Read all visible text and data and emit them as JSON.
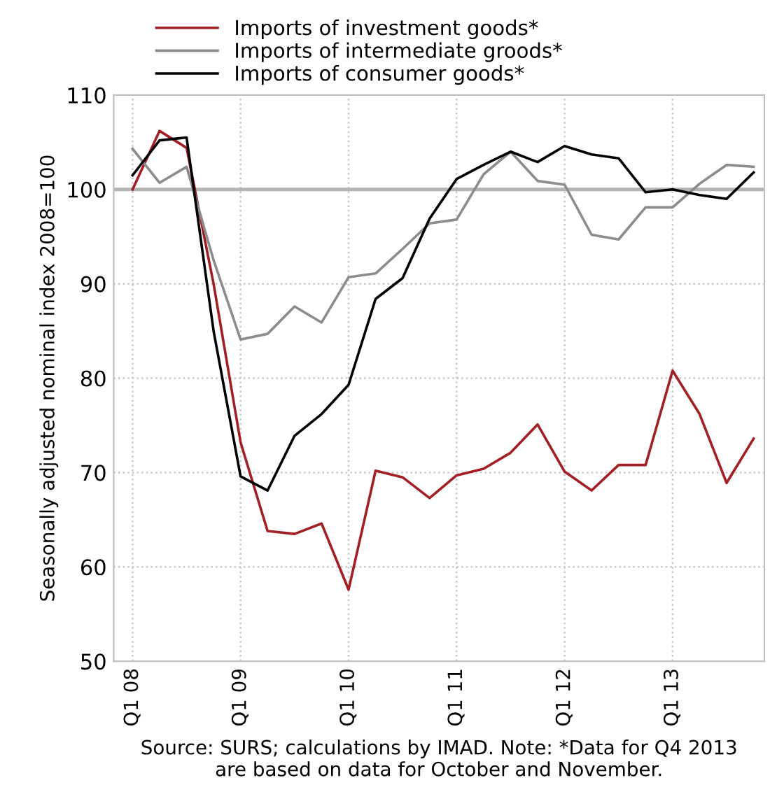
{
  "chart_data": {
    "type": "line",
    "ylabel": "Seasonally adjusted nominal index 2008=100",
    "categories": [
      "Q1 08",
      null,
      null,
      null,
      "Q1 09",
      null,
      null,
      null,
      "Q1 10",
      null,
      null,
      null,
      "Q1 11",
      null,
      null,
      null,
      "Q1 12",
      null,
      null,
      null,
      "Q1 13",
      null,
      null,
      null
    ],
    "series": [
      {
        "name": "Imports of investment goods*",
        "color": "#a31f24",
        "values": [
          100.0,
          106.2,
          104.4,
          90.0,
          73.2,
          63.8,
          63.5,
          64.6,
          57.6,
          70.2,
          69.5,
          67.3,
          69.7,
          70.4,
          72.1,
          75.1,
          70.1,
          68.1,
          70.8,
          70.8,
          80.8,
          76.2,
          68.9,
          73.6
        ]
      },
      {
        "name": "Imports of intermediate groods*",
        "color": "#8c8c8c",
        "values": [
          104.3,
          100.7,
          102.4,
          92.5,
          84.1,
          84.7,
          87.6,
          85.9,
          90.7,
          91.1,
          93.7,
          96.4,
          96.8,
          101.6,
          104.0,
          100.9,
          100.5,
          95.2,
          94.7,
          98.1,
          98.1,
          100.6,
          102.6,
          102.4
        ]
      },
      {
        "name": "Imports of consumer goods*",
        "color": "#000000",
        "values": [
          101.5,
          105.2,
          105.5,
          85.0,
          69.6,
          68.1,
          73.9,
          76.2,
          79.3,
          88.4,
          90.6,
          96.9,
          101.1,
          102.6,
          104.0,
          102.9,
          104.6,
          103.7,
          103.3,
          99.7,
          100.0,
          99.4,
          99.0,
          101.8
        ]
      }
    ],
    "ylim": [
      50,
      110
    ],
    "yticks": [
      50,
      60,
      70,
      80,
      90,
      100,
      110
    ],
    "ref_lines": [
      {
        "axis": "y",
        "value": 100,
        "color": "#b4b4b4"
      }
    ],
    "grid": true,
    "legend": "top",
    "marker": "none",
    "line_style": "solid",
    "annotations": [
      "Source: SURS; calculations by IMAD. Note: *Data for Q4 2013\nare based on data for October and November."
    ]
  }
}
